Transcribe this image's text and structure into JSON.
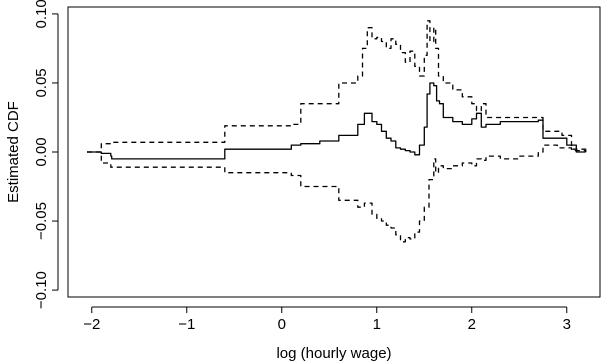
{
  "chart_data": {
    "type": "line",
    "xlabel": "log (hourly wage)",
    "ylabel": "Estimated CDF",
    "xlim": [
      -2.25,
      3.35
    ],
    "ylim": [
      -0.105,
      0.105
    ],
    "x_ticks": [
      -2,
      -1,
      0,
      1,
      2,
      3
    ],
    "x_tick_labels": [
      "−2",
      "−1",
      "0",
      "1",
      "2",
      "3"
    ],
    "y_ticks": [
      -0.1,
      -0.05,
      0.0,
      0.05,
      0.1
    ],
    "y_tick_labels": [
      "−0.10",
      "−0.05",
      "0.00",
      "0.05",
      "0.10"
    ],
    "grid": false,
    "series": [
      {
        "style": "solid",
        "x": [
          -2.05,
          -1.9,
          -1.8,
          -1.79,
          -0.7,
          -0.6,
          0.0,
          0.1,
          0.2,
          0.4,
          0.6,
          0.8,
          0.87,
          0.95,
          1.0,
          1.05,
          1.1,
          1.15,
          1.2,
          1.25,
          1.3,
          1.35,
          1.4,
          1.45,
          1.5,
          1.53,
          1.56,
          1.6,
          1.63,
          1.66,
          1.7,
          1.8,
          1.9,
          2.0,
          2.05,
          2.1,
          2.15,
          2.3,
          2.5,
          2.7,
          2.75,
          2.9,
          3.0,
          3.1,
          3.2
        ],
        "y": [
          0.0,
          -0.001,
          -0.003,
          -0.005,
          -0.005,
          0.002,
          0.002,
          0.005,
          0.006,
          0.008,
          0.012,
          0.02,
          0.028,
          0.022,
          0.02,
          0.015,
          0.01,
          0.008,
          0.003,
          0.002,
          0.001,
          0.0,
          -0.002,
          0.005,
          0.018,
          0.042,
          0.05,
          0.048,
          0.037,
          0.035,
          0.025,
          0.022,
          0.02,
          0.024,
          0.028,
          0.018,
          0.02,
          0.022,
          0.022,
          0.023,
          0.01,
          0.01,
          0.005,
          0.0,
          0.0
        ]
      },
      {
        "style": "dashed",
        "x": [
          -2.05,
          -1.9,
          -1.8,
          -0.7,
          -0.6,
          0.1,
          0.2,
          0.6,
          0.8,
          0.85,
          0.9,
          0.95,
          1.0,
          1.05,
          1.1,
          1.15,
          1.2,
          1.25,
          1.3,
          1.35,
          1.4,
          1.45,
          1.5,
          1.53,
          1.56,
          1.6,
          1.62,
          1.65,
          1.7,
          1.8,
          1.9,
          2.0,
          2.05,
          2.1,
          2.15,
          2.4,
          2.7,
          2.75,
          2.95,
          3.05,
          3.2
        ],
        "y": [
          0.0,
          0.006,
          0.007,
          0.007,
          0.019,
          0.02,
          0.035,
          0.05,
          0.055,
          0.075,
          0.09,
          0.082,
          0.083,
          0.08,
          0.075,
          0.082,
          0.078,
          0.072,
          0.065,
          0.073,
          0.062,
          0.055,
          0.07,
          0.095,
          0.08,
          0.09,
          0.075,
          0.055,
          0.05,
          0.045,
          0.04,
          0.035,
          0.03,
          0.035,
          0.025,
          0.025,
          0.025,
          0.015,
          0.012,
          0.002,
          0.0
        ]
      },
      {
        "style": "dashed",
        "x": [
          -2.05,
          -1.9,
          -1.8,
          -0.7,
          -0.6,
          0.1,
          0.2,
          0.6,
          0.8,
          0.87,
          0.95,
          1.0,
          1.05,
          1.1,
          1.15,
          1.2,
          1.25,
          1.3,
          1.35,
          1.4,
          1.45,
          1.5,
          1.55,
          1.6,
          1.62,
          1.65,
          1.7,
          1.8,
          1.9,
          2.0,
          2.05,
          2.1,
          2.15,
          2.3,
          2.5,
          2.7,
          2.75,
          2.9,
          3.05,
          3.2
        ],
        "y": [
          0.0,
          -0.008,
          -0.011,
          -0.011,
          -0.015,
          -0.017,
          -0.025,
          -0.035,
          -0.04,
          -0.037,
          -0.045,
          -0.048,
          -0.05,
          -0.053,
          -0.055,
          -0.06,
          -0.065,
          -0.062,
          -0.063,
          -0.058,
          -0.05,
          -0.04,
          -0.02,
          -0.005,
          -0.015,
          -0.01,
          -0.012,
          -0.01,
          -0.008,
          -0.01,
          -0.005,
          -0.006,
          -0.003,
          -0.005,
          -0.003,
          0.0,
          0.005,
          0.003,
          0.001,
          0.0
        ]
      }
    ]
  }
}
